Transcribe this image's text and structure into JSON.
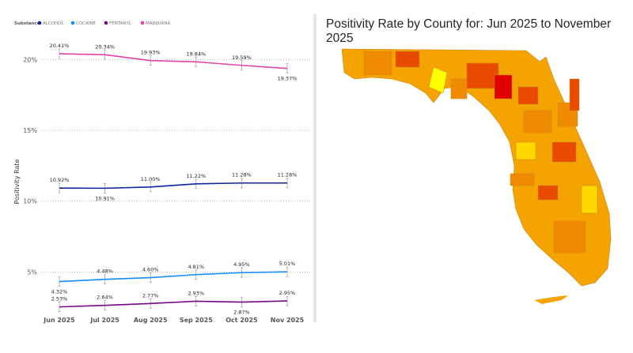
{
  "chart_data": {
    "type": "line",
    "legend": {
      "title": "Substance",
      "placement": "top-left"
    },
    "ylabel": "Positivity Rate",
    "xlabel": "",
    "categories": [
      "Jun 2025",
      "Jul 2025",
      "Aug 2025",
      "Sep 2025",
      "Oct 2025",
      "Nov 2025"
    ],
    "yticks": [
      "5%",
      "10%",
      "15%",
      "20%"
    ],
    "ytick_values": [
      5,
      10,
      15,
      20
    ],
    "ylim": [
      0,
      20.5
    ],
    "grid": "horizontal dotted",
    "error_bars": true,
    "series": [
      {
        "name": "ALCOHOL",
        "color": "#12239e",
        "values": [
          10.92,
          10.91,
          11.0,
          11.22,
          11.28,
          11.28
        ],
        "labels": [
          "10.92%",
          "10.91%",
          "11.00%",
          "11.22%",
          "11.28%",
          "11.28%"
        ],
        "label_pos": [
          "above",
          "below",
          "above",
          "above",
          "above",
          "above"
        ]
      },
      {
        "name": "COCAINE",
        "color": "#118dff",
        "values": [
          4.32,
          4.48,
          4.6,
          4.81,
          4.95,
          5.01
        ],
        "labels": [
          "4.32%",
          "4.48%",
          "4.60%",
          "4.81%",
          "4.95%",
          "5.01%"
        ],
        "label_pos": [
          "below",
          "above",
          "above",
          "above",
          "above",
          "above"
        ]
      },
      {
        "name": "FENTANYL",
        "color": "#750985",
        "values": [
          2.53,
          2.64,
          2.77,
          2.93,
          2.87,
          2.95
        ],
        "labels": [
          "2.53%",
          "2.64%",
          "2.77%",
          "2.93%",
          "2.87%",
          "2.95%"
        ],
        "label_pos": [
          "above",
          "above",
          "above",
          "above",
          "below",
          "above"
        ]
      },
      {
        "name": "MARIJUANA",
        "color": "#e044a7",
        "values": [
          20.41,
          20.34,
          19.93,
          19.84,
          19.59,
          19.37
        ],
        "labels": [
          "20.41%",
          "20.34%",
          "19.93%",
          "19.84%",
          "19.59%",
          "19.37%"
        ],
        "label_pos": [
          "above",
          "above",
          "above",
          "above",
          "above",
          "below"
        ]
      }
    ]
  },
  "map": {
    "title": "Positivity Rate by County for: Jun 2025 to November 2025",
    "colors": {
      "base": "#f5a300",
      "mid": "#f08a00",
      "high": "#e84a00",
      "max": "#e00000",
      "low": "#ffd800",
      "min": "#ffff00"
    }
  }
}
